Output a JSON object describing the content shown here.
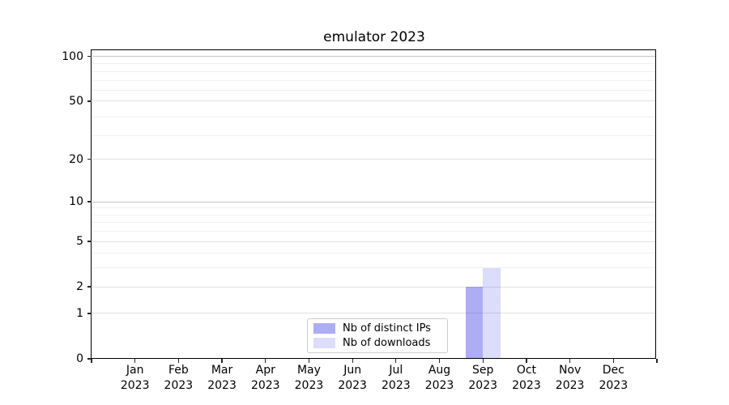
{
  "chart_data": {
    "type": "bar",
    "title": "emulator 2023",
    "categories": [
      "Jan 2023",
      "Feb 2023",
      "Mar 2023",
      "Apr 2023",
      "May 2023",
      "Jun 2023",
      "Jul 2023",
      "Aug 2023",
      "Sep 2023",
      "Oct 2023",
      "Nov 2023",
      "Dec 2023"
    ],
    "series": [
      {
        "name": "Nb of distinct IPs",
        "color": "rgba(20,20,230,0.35)",
        "values": [
          0,
          0,
          0,
          0,
          0,
          0,
          0,
          0,
          2,
          0,
          0,
          0
        ]
      },
      {
        "name": "Nb of downloads",
        "color": "rgba(20,20,230,0.15)",
        "values": [
          0,
          0,
          0,
          0,
          0,
          0,
          0,
          0,
          3,
          0,
          0,
          0
        ]
      }
    ],
    "xlabel": "",
    "ylabel": "",
    "y_axis": {
      "scale": "log10(1+v)",
      "ticks": [
        0,
        1,
        2,
        5,
        10,
        20,
        50,
        100
      ],
      "strong_gridlines": [
        10,
        100
      ],
      "medium_gridlines": [
        1,
        2,
        5,
        20,
        50
      ],
      "minor_gridlines": [
        3,
        4,
        6,
        7,
        8,
        9,
        29,
        39,
        59,
        69,
        79,
        89
      ],
      "max": 110
    },
    "legend": {
      "position": "lower center"
    },
    "grid": {
      "strong_color": "#c6c6c6",
      "medium_color": "#e2e2e2",
      "minor_color": "#f1f1f1"
    }
  }
}
